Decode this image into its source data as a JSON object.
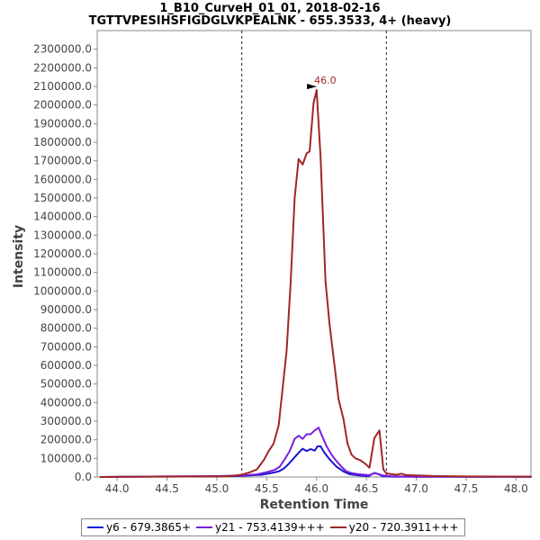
{
  "chart_data": {
    "type": "line",
    "title": "1_B10_CurveH_01_01, 2018-02-16",
    "subtitle": "TGTTVPESIHSFIGDGLVKPEALNK - 655.3533, 4+ (heavy)",
    "xlabel": "Retention Time",
    "ylabel": "Intensity",
    "xlim": [
      43.8,
      48.15
    ],
    "ylim": [
      0,
      2400000
    ],
    "x_ticks": [
      "44.0",
      "44.5",
      "45.0",
      "45.5",
      "46.0",
      "46.5",
      "47.0",
      "47.5",
      "48.0"
    ],
    "y_ticks": [
      "0.0",
      "100000.0",
      "200000.0",
      "300000.0",
      "400000.0",
      "500000.0",
      "600000.0",
      "700000.0",
      "800000.0",
      "900000.0",
      "1000000.0",
      "1100000.0",
      "1200000.0",
      "1300000.0",
      "1400000.0",
      "1500000.0",
      "1600000.0",
      "1700000.0",
      "1800000.0",
      "1900000.0",
      "2000000.0",
      "2100000.0",
      "2200000.0",
      "2300000.0"
    ],
    "grid": false,
    "legend_position": "bottom",
    "vertical_lines": [
      45.25,
      46.7
    ],
    "peak_annotation": {
      "label": "46.0",
      "x": 46.03,
      "y": 2080000
    },
    "series": [
      {
        "name": "y6 - 679.3865+",
        "color": "#1515d4",
        "points": [
          [
            43.83,
            0
          ],
          [
            44.5,
            3000
          ],
          [
            45.0,
            4000
          ],
          [
            45.25,
            6000
          ],
          [
            45.45,
            12000
          ],
          [
            45.55,
            22000
          ],
          [
            45.62,
            30000
          ],
          [
            45.67,
            45000
          ],
          [
            45.72,
            70000
          ],
          [
            45.77,
            100000
          ],
          [
            45.82,
            130000
          ],
          [
            45.86,
            152000
          ],
          [
            45.9,
            140000
          ],
          [
            45.94,
            150000
          ],
          [
            45.98,
            142000
          ],
          [
            46.01,
            165000
          ],
          [
            46.04,
            165000
          ],
          [
            46.08,
            130000
          ],
          [
            46.13,
            95000
          ],
          [
            46.2,
            55000
          ],
          [
            46.27,
            30000
          ],
          [
            46.33,
            15000
          ],
          [
            46.4,
            10000
          ],
          [
            46.47,
            7000
          ],
          [
            46.52,
            5000
          ],
          [
            46.58,
            22000
          ],
          [
            46.62,
            15000
          ],
          [
            46.66,
            5000
          ],
          [
            46.75,
            2000
          ],
          [
            47.0,
            1000
          ],
          [
            47.5,
            1000
          ],
          [
            48.15,
            1000
          ]
        ]
      },
      {
        "name": "y21 - 753.4139+++",
        "color": "#7a1fe0",
        "points": [
          [
            43.83,
            0
          ],
          [
            44.5,
            3000
          ],
          [
            45.0,
            5000
          ],
          [
            45.25,
            8000
          ],
          [
            45.4,
            14000
          ],
          [
            45.5,
            26000
          ],
          [
            45.58,
            38000
          ],
          [
            45.63,
            55000
          ],
          [
            45.68,
            95000
          ],
          [
            45.73,
            140000
          ],
          [
            45.78,
            205000
          ],
          [
            45.82,
            222000
          ],
          [
            45.86,
            205000
          ],
          [
            45.9,
            230000
          ],
          [
            45.94,
            230000
          ],
          [
            45.98,
            250000
          ],
          [
            46.02,
            265000
          ],
          [
            46.06,
            215000
          ],
          [
            46.1,
            165000
          ],
          [
            46.15,
            120000
          ],
          [
            46.2,
            85000
          ],
          [
            46.25,
            55000
          ],
          [
            46.3,
            30000
          ],
          [
            46.36,
            20000
          ],
          [
            46.42,
            15000
          ],
          [
            46.48,
            12000
          ],
          [
            46.53,
            10000
          ],
          [
            46.58,
            22000
          ],
          [
            46.62,
            16000
          ],
          [
            46.66,
            8000
          ],
          [
            46.75,
            4000
          ],
          [
            47.0,
            2000
          ],
          [
            47.5,
            1500
          ],
          [
            48.15,
            1000
          ]
        ]
      },
      {
        "name": "y20 - 720.3911+++",
        "color": "#a02727",
        "points": [
          [
            43.83,
            0
          ],
          [
            44.0,
            1000
          ],
          [
            44.5,
            2000
          ],
          [
            45.0,
            3000
          ],
          [
            45.15,
            6000
          ],
          [
            45.25,
            12000
          ],
          [
            45.33,
            25000
          ],
          [
            45.4,
            40000
          ],
          [
            45.47,
            90000
          ],
          [
            45.52,
            140000
          ],
          [
            45.57,
            180000
          ],
          [
            45.62,
            280000
          ],
          [
            45.66,
            480000
          ],
          [
            45.7,
            680000
          ],
          [
            45.74,
            1050000
          ],
          [
            45.78,
            1500000
          ],
          [
            45.82,
            1710000
          ],
          [
            45.86,
            1680000
          ],
          [
            45.9,
            1740000
          ],
          [
            45.93,
            1750000
          ],
          [
            45.97,
            2010000
          ],
          [
            46.0,
            2080000
          ],
          [
            46.04,
            1720000
          ],
          [
            46.09,
            1050000
          ],
          [
            46.13,
            820000
          ],
          [
            46.18,
            600000
          ],
          [
            46.22,
            420000
          ],
          [
            46.27,
            310000
          ],
          [
            46.31,
            180000
          ],
          [
            46.35,
            120000
          ],
          [
            46.39,
            100000
          ],
          [
            46.44,
            90000
          ],
          [
            46.49,
            70000
          ],
          [
            46.53,
            50000
          ],
          [
            46.58,
            210000
          ],
          [
            46.63,
            250000
          ],
          [
            46.67,
            40000
          ],
          [
            46.7,
            20000
          ],
          [
            46.75,
            15000
          ],
          [
            46.8,
            12000
          ],
          [
            46.85,
            18000
          ],
          [
            46.9,
            10000
          ],
          [
            47.0,
            8000
          ],
          [
            47.2,
            5000
          ],
          [
            47.5,
            3000
          ],
          [
            48.15,
            2000
          ]
        ]
      }
    ]
  }
}
